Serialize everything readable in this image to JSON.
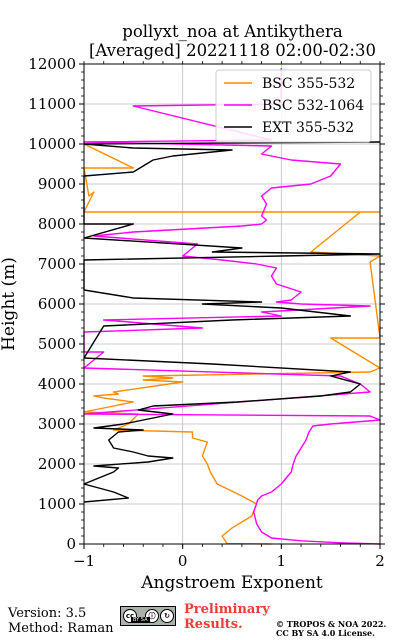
{
  "chart_data": {
    "type": "line",
    "title": "pollyxt_noa at Antikythera",
    "subtitle": "[Averaged] 20221118 02:00-02:30",
    "xlabel": "Angstroem Exponent",
    "ylabel": "Height (m)",
    "xlim": [
      -1,
      2
    ],
    "ylim": [
      0,
      12000
    ],
    "xticks": [
      -1,
      0,
      1,
      2
    ],
    "yticks": [
      0,
      1000,
      2000,
      3000,
      4000,
      5000,
      6000,
      7000,
      8000,
      9000,
      10000,
      11000,
      12000
    ],
    "grid": true,
    "legend_position": "top-right",
    "series": [
      {
        "name": "BSC 355-532",
        "color": "#ff8c00",
        "points": [
          [
            0.9,
            0
          ],
          [
            0.45,
            10
          ],
          [
            0.4,
            200
          ],
          [
            0.5,
            400
          ],
          [
            0.7,
            700
          ],
          [
            0.75,
            1000
          ],
          [
            0.6,
            1200
          ],
          [
            0.35,
            1500
          ],
          [
            0.28,
            1800
          ],
          [
            0.25,
            2000
          ],
          [
            0.2,
            2200
          ],
          [
            0.25,
            2550
          ],
          [
            0.1,
            2650
          ],
          [
            0.1,
            2800
          ],
          [
            -0.7,
            2850
          ],
          [
            -0.55,
            3000
          ],
          [
            -0.45,
            3250
          ],
          [
            -1.0,
            3300
          ],
          [
            -0.5,
            3550
          ],
          [
            -0.8,
            3650
          ],
          [
            -0.9,
            3700
          ],
          [
            -0.65,
            3750
          ],
          [
            -0.7,
            3800
          ],
          [
            0.0,
            4050
          ],
          [
            -0.4,
            4100
          ],
          [
            -0.1,
            4150
          ],
          [
            -0.4,
            4200
          ],
          [
            1.9,
            4300
          ],
          [
            2.0,
            4400
          ],
          [
            1.5,
            5150
          ],
          [
            2.0,
            5150
          ],
          [
            1.9,
            7050
          ],
          [
            2.0,
            7200
          ],
          [
            1.3,
            7300
          ],
          [
            1.8,
            8300
          ],
          [
            2.0,
            8300
          ],
          [
            -1.0,
            8300
          ],
          [
            -0.9,
            8800
          ],
          [
            -0.95,
            8700
          ],
          [
            -1.0,
            9400
          ],
          [
            -0.5,
            9400
          ],
          [
            -1.0,
            10000
          ]
        ]
      },
      {
        "name": "BSC 532-1064",
        "color": "#ff00ff",
        "points": [
          [
            2.0,
            0
          ],
          [
            1.6,
            30
          ],
          [
            1.2,
            80
          ],
          [
            0.9,
            150
          ],
          [
            0.8,
            300
          ],
          [
            0.75,
            500
          ],
          [
            0.72,
            800
          ],
          [
            0.76,
            1100
          ],
          [
            0.8,
            1200
          ],
          [
            0.9,
            1300
          ],
          [
            1.0,
            1500
          ],
          [
            1.1,
            1800
          ],
          [
            1.12,
            2000
          ],
          [
            1.15,
            2200
          ],
          [
            1.2,
            2400
          ],
          [
            1.25,
            2600
          ],
          [
            1.28,
            2800
          ],
          [
            1.32,
            2950
          ],
          [
            1.5,
            3000
          ],
          [
            2.0,
            3100
          ],
          [
            1.9,
            3200
          ],
          [
            -1.0,
            3250
          ],
          [
            1.9,
            3800
          ],
          [
            1.8,
            4000
          ],
          [
            1.6,
            4200
          ],
          [
            -1.0,
            4400
          ],
          [
            -0.8,
            4800
          ],
          [
            -1.0,
            4800
          ],
          [
            -1.0,
            5300
          ],
          [
            0.2,
            5400
          ],
          [
            -0.3,
            5500
          ],
          [
            -0.8,
            5600
          ],
          [
            1.0,
            5700
          ],
          [
            0.8,
            5800
          ],
          [
            1.9,
            5950
          ],
          [
            1.2,
            6000
          ],
          [
            0.95,
            6050
          ],
          [
            1.1,
            6100
          ],
          [
            1.2,
            6300
          ],
          [
            0.95,
            6500
          ],
          [
            0.9,
            6700
          ],
          [
            0.95,
            6900
          ],
          [
            0.75,
            7000
          ],
          [
            0.4,
            7100
          ],
          [
            0.0,
            7200
          ],
          [
            0.15,
            7500
          ],
          [
            -0.9,
            7700
          ],
          [
            -0.5,
            7800
          ],
          [
            0.6,
            7950
          ],
          [
            0.8,
            8000
          ],
          [
            0.85,
            8100
          ],
          [
            0.8,
            8200
          ],
          [
            0.85,
            8500
          ],
          [
            0.8,
            8700
          ],
          [
            0.9,
            8900
          ],
          [
            1.3,
            9000
          ],
          [
            1.5,
            9200
          ],
          [
            1.6,
            9500
          ],
          [
            1.1,
            9600
          ],
          [
            0.8,
            9750
          ],
          [
            0.9,
            9950
          ],
          [
            -1.0,
            10050
          ],
          [
            0.9,
            10100
          ],
          [
            -0.5,
            10950
          ],
          [
            1.0,
            11000
          ],
          [
            1.0,
            11900
          ]
        ]
      },
      {
        "name": "EXT 355-532",
        "color": "#000000",
        "points": [
          [
            -1.0,
            1050
          ],
          [
            -0.55,
            1150
          ],
          [
            -0.7,
            1300
          ],
          [
            -1.0,
            1500
          ],
          [
            -0.7,
            1800
          ],
          [
            -0.65,
            1900
          ],
          [
            -0.9,
            1950
          ],
          [
            -0.35,
            2050
          ],
          [
            -0.1,
            2150
          ],
          [
            -0.35,
            2200
          ],
          [
            -0.5,
            2300
          ],
          [
            -0.7,
            2400
          ],
          [
            -0.75,
            2600
          ],
          [
            -0.65,
            2800
          ],
          [
            -0.4,
            2850
          ],
          [
            -0.9,
            2900
          ],
          [
            -0.6,
            3000
          ],
          [
            -0.1,
            3250
          ],
          [
            -0.45,
            3350
          ],
          [
            -0.3,
            3450
          ],
          [
            0.55,
            3550
          ],
          [
            1.4,
            3700
          ],
          [
            1.7,
            3800
          ],
          [
            1.8,
            4000
          ],
          [
            1.5,
            4200
          ],
          [
            1.7,
            4300
          ],
          [
            0.3,
            4500
          ],
          [
            -1.0,
            4650
          ],
          [
            -0.8,
            5450
          ],
          [
            0.5,
            5600
          ],
          [
            1.7,
            5700
          ],
          [
            1.0,
            5900
          ],
          [
            0.2,
            6000
          ],
          [
            0.8,
            6050
          ],
          [
            -0.5,
            6150
          ],
          [
            -1.0,
            6350
          ],
          [
            -1.0,
            7100
          ],
          [
            1.0,
            7200
          ],
          [
            2.0,
            7250
          ],
          [
            0.3,
            7300
          ],
          [
            0.6,
            7400
          ],
          [
            -1.0,
            7650
          ],
          [
            -0.5,
            8000
          ],
          [
            -1.0,
            8000
          ],
          [
            -1.0,
            9200
          ],
          [
            -0.5,
            9300
          ],
          [
            -0.3,
            9600
          ],
          [
            -0.1,
            9700
          ],
          [
            0.5,
            9850
          ],
          [
            -0.5,
            9900
          ],
          [
            -1.0,
            10000
          ],
          [
            2.0,
            10050
          ]
        ]
      }
    ]
  },
  "footer": {
    "version": "Version: 3.5",
    "method": "Method: Raman",
    "preliminary_line1": "Preliminary",
    "preliminary_line2": "Results.",
    "copyright_line1": "© TROPOS & NOA 2022.",
    "copyright_line2": "CC BY SA 4.0 License.",
    "license_badge_text": "BY  SA"
  }
}
